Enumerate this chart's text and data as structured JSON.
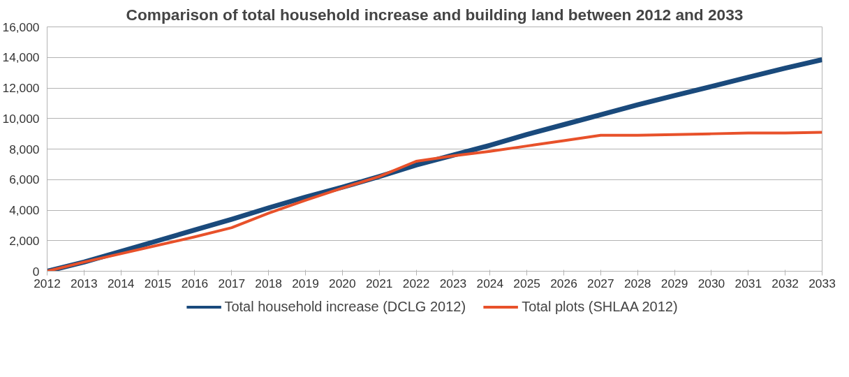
{
  "chart_data": {
    "type": "line",
    "title": "Comparison of total household increase and building land between 2012 and 2033",
    "categories": [
      "2012",
      "2013",
      "2014",
      "2015",
      "2016",
      "2017",
      "2018",
      "2019",
      "2020",
      "2021",
      "2022",
      "2023",
      "2024",
      "2025",
      "2026",
      "2027",
      "2028",
      "2029",
      "2030",
      "2031",
      "2032",
      "2033"
    ],
    "series": [
      {
        "name": "Total household increase (DCLG 2012)",
        "color": "#1a4a7c",
        "values": [
          0,
          600,
          1300,
          2000,
          2700,
          3400,
          4150,
          4850,
          5500,
          6200,
          6950,
          7600,
          8250,
          8950,
          9600,
          10250,
          10900,
          11500,
          12100,
          12700,
          13300,
          13850
        ]
      },
      {
        "name": "Total plots (SHLAA 2012)",
        "color": "#e8512a",
        "values": [
          0,
          600,
          1150,
          1700,
          2250,
          2850,
          3800,
          4650,
          5450,
          6200,
          7200,
          7550,
          7850,
          8200,
          8550,
          8900,
          8900,
          8950,
          9000,
          9050,
          9050,
          9100
        ]
      }
    ],
    "ylim": [
      0,
      16000
    ],
    "yticks": [
      {
        "value": 0,
        "label": "0"
      },
      {
        "value": 2000,
        "label": "2,000"
      },
      {
        "value": 4000,
        "label": "4,000"
      },
      {
        "value": 6000,
        "label": "6,000"
      },
      {
        "value": 8000,
        "label": "8,000"
      },
      {
        "value": 10000,
        "label": "10,000"
      },
      {
        "value": 12000,
        "label": "12,000"
      },
      {
        "value": 14000,
        "label": "14,000"
      },
      {
        "value": 16000,
        "label": "16,000"
      }
    ],
    "grid": "y",
    "legend": "bottom",
    "marker": "none",
    "line_style": "solid"
  }
}
